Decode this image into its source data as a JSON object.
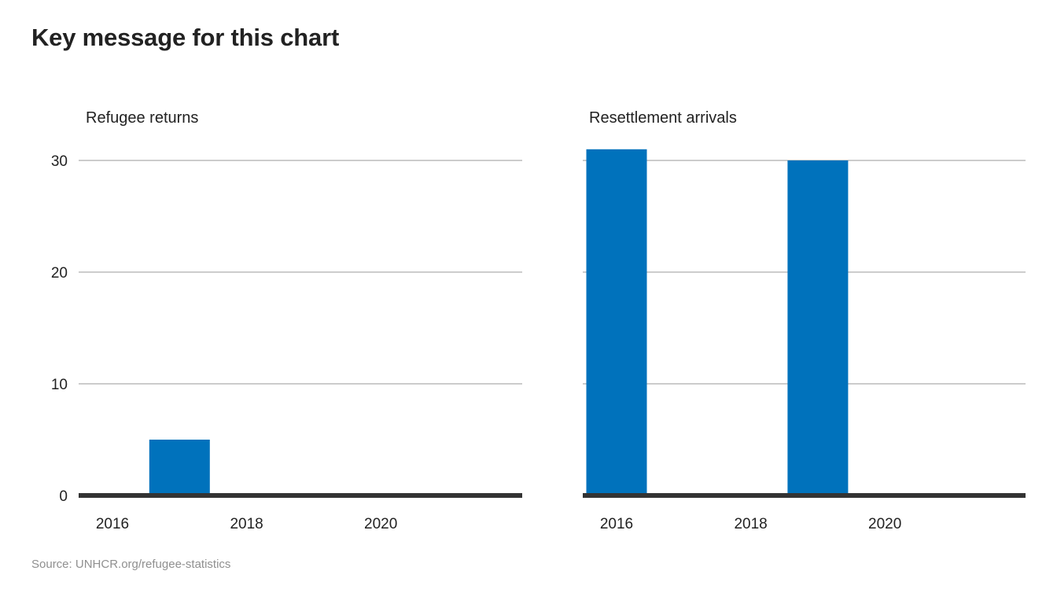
{
  "title": "Key message for this chart",
  "source": "Source: UNHCR.org/refugee-statistics",
  "colors": {
    "bar": "#0072BC",
    "grid": "#CCCCCC",
    "baseline": "#333333"
  },
  "chart_data": [
    {
      "type": "bar",
      "title": "Refugee returns",
      "x": [
        2016,
        2017,
        2018,
        2019,
        2020,
        2021
      ],
      "values": [
        0,
        5,
        0,
        0,
        0,
        0
      ],
      "xticks": [
        2016,
        2018,
        2020
      ],
      "yticks": [
        0,
        10,
        20,
        30
      ],
      "ylim": [
        0,
        30
      ],
      "xlabel": "",
      "ylabel": "",
      "grid": true
    },
    {
      "type": "bar",
      "title": "Resettlement arrivals",
      "x": [
        2016,
        2017,
        2018,
        2019,
        2020,
        2021
      ],
      "values": [
        31,
        0,
        0,
        30,
        0,
        0
      ],
      "xticks": [
        2016,
        2018,
        2020
      ],
      "yticks": [
        0,
        10,
        20,
        30
      ],
      "ylim": [
        0,
        30
      ],
      "xlabel": "",
      "ylabel": "",
      "grid": true
    }
  ]
}
